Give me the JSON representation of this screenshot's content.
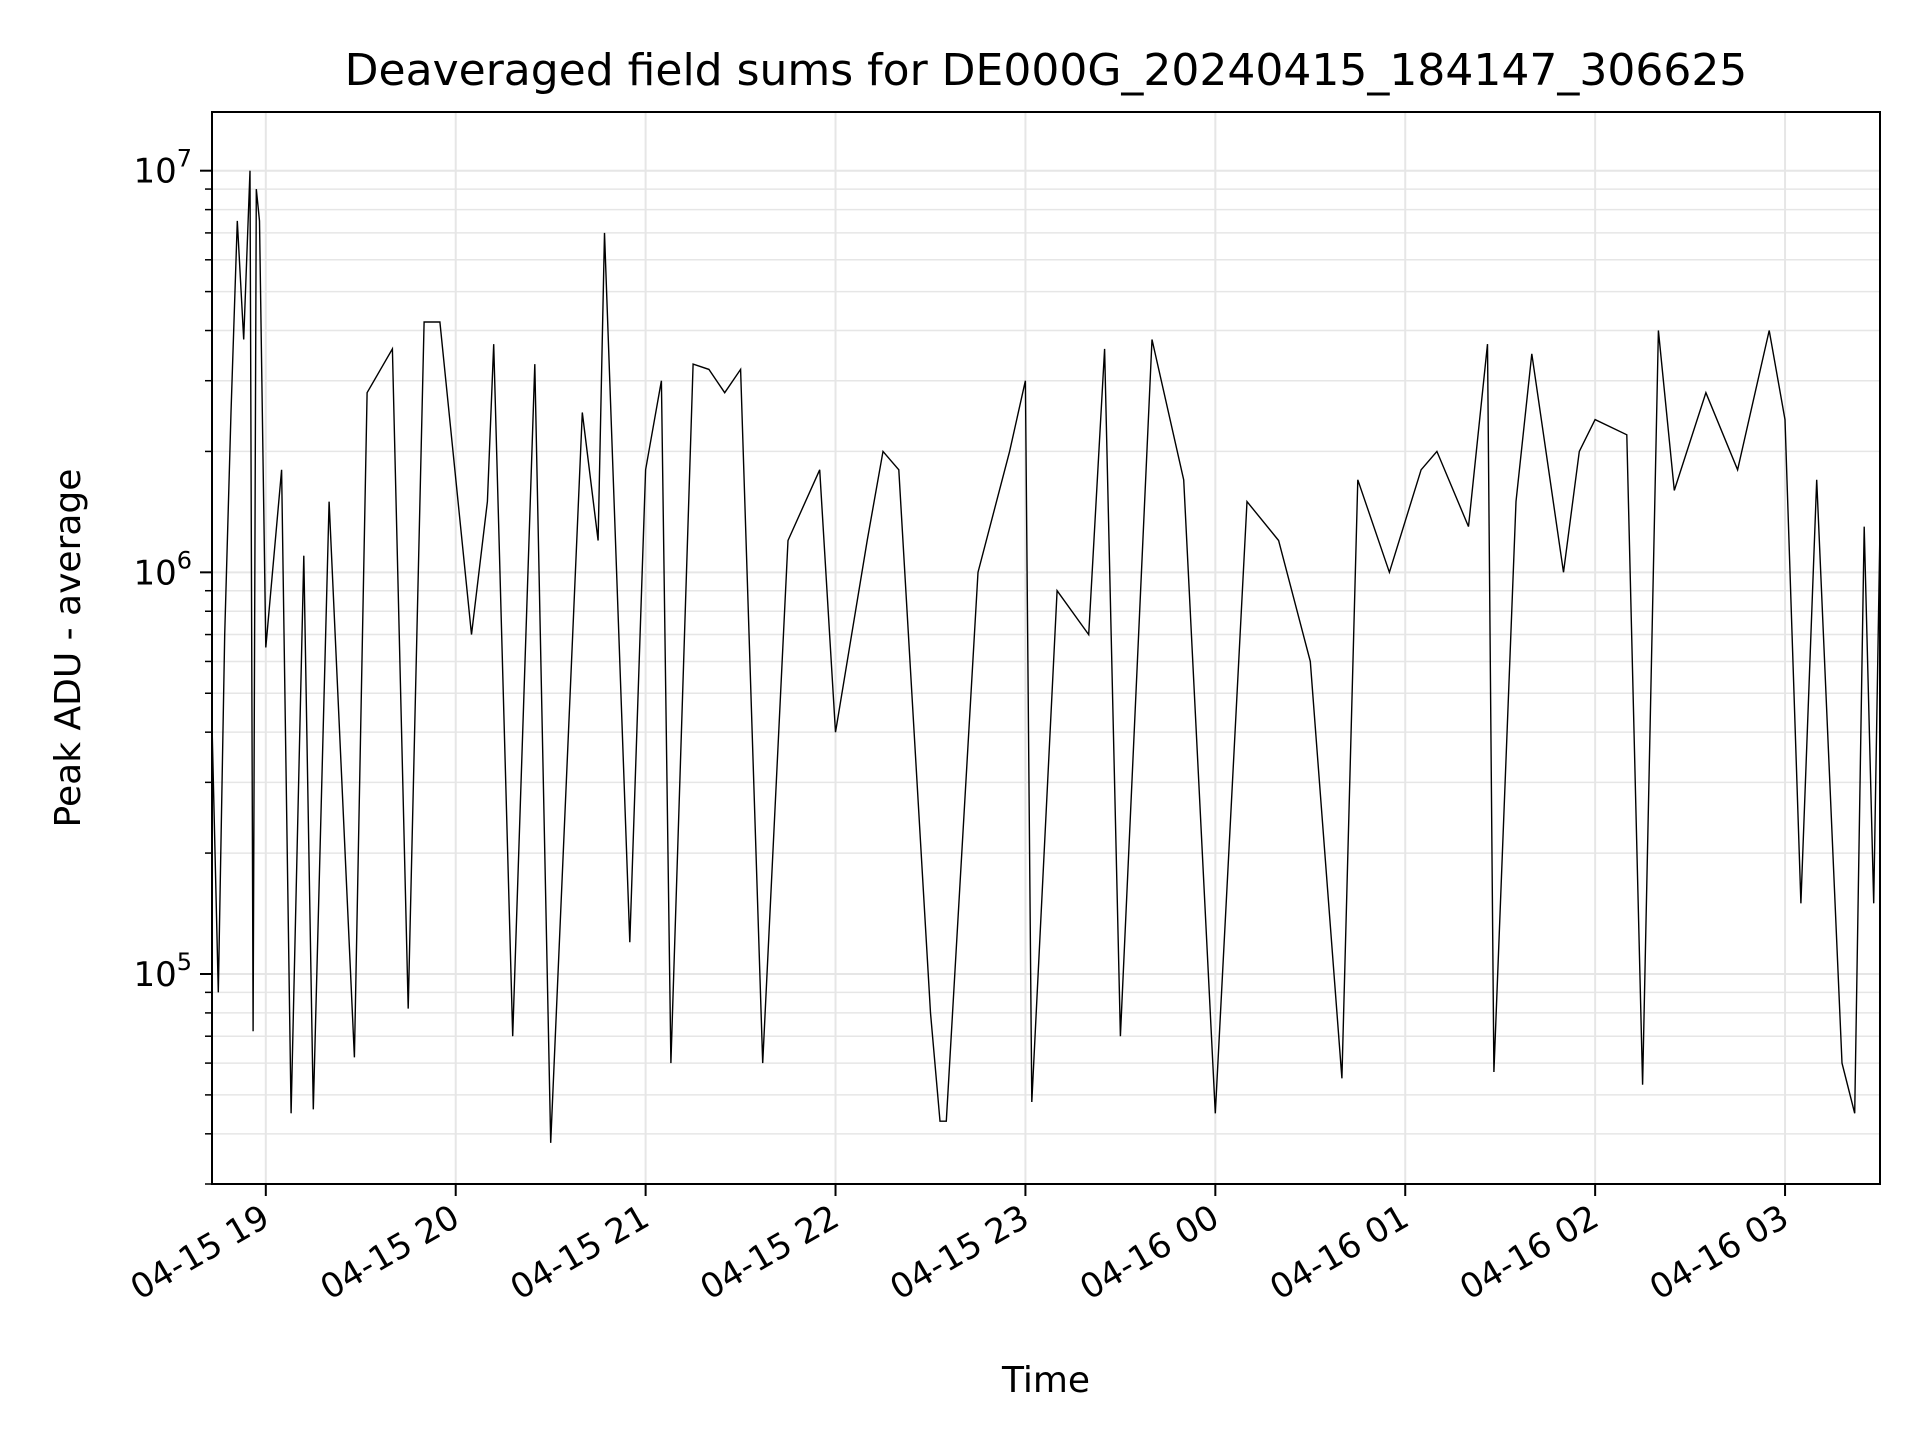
{
  "chart_data": {
    "type": "line",
    "title": "Deaveraged field sums for DE000G_20240415_184147_306625",
    "xlabel": "Time",
    "ylabel": "Peak ADU - average",
    "yscale": "log",
    "ylim": [
      30000,
      14000000
    ],
    "xlim": [
      "2024-04-15 18:43",
      "2024-04-16 03:30"
    ],
    "grid": true,
    "line_color": "#000000",
    "grid_color": "#e6e6e6",
    "x_ticks": [
      {
        "t": "2024-04-15 19:00",
        "label": "04-15 19"
      },
      {
        "t": "2024-04-15 20:00",
        "label": "04-15 20"
      },
      {
        "t": "2024-04-15 21:00",
        "label": "04-15 21"
      },
      {
        "t": "2024-04-15 22:00",
        "label": "04-15 22"
      },
      {
        "t": "2024-04-15 23:00",
        "label": "04-15 23"
      },
      {
        "t": "2024-04-16 00:00",
        "label": "04-16 00"
      },
      {
        "t": "2024-04-16 01:00",
        "label": "04-16 01"
      },
      {
        "t": "2024-04-16 02:00",
        "label": "04-16 02"
      },
      {
        "t": "2024-04-16 03:00",
        "label": "04-16 03"
      }
    ],
    "y_ticks": [
      {
        "value": 100000,
        "base": "10",
        "exp": "5"
      },
      {
        "value": 1000000,
        "base": "10",
        "exp": "6"
      },
      {
        "value": 10000000,
        "base": "10",
        "exp": "7"
      }
    ],
    "series": [
      {
        "points": [
          [
            "2024-04-15 18:43",
            420000
          ],
          [
            "2024-04-15 18:45",
            90000
          ],
          [
            "2024-04-15 18:47",
            700000
          ],
          [
            "2024-04-15 18:49",
            2500000
          ],
          [
            "2024-04-15 18:51",
            7500000
          ],
          [
            "2024-04-15 18:53",
            3800000
          ],
          [
            "2024-04-15 18:55",
            10000000
          ],
          [
            "2024-04-15 18:56",
            72000
          ],
          [
            "2024-04-15 18:57",
            9000000
          ],
          [
            "2024-04-15 18:58",
            7500000
          ],
          [
            "2024-04-15 19:00",
            650000
          ],
          [
            "2024-04-15 19:05",
            1800000
          ],
          [
            "2024-04-15 19:08",
            45000
          ],
          [
            "2024-04-15 19:12",
            1100000
          ],
          [
            "2024-04-15 19:15",
            46000
          ],
          [
            "2024-04-15 19:20",
            1500000
          ],
          [
            "2024-04-15 19:28",
            62000
          ],
          [
            "2024-04-15 19:32",
            2800000
          ],
          [
            "2024-04-15 19:40",
            3600000
          ],
          [
            "2024-04-15 19:45",
            82000
          ],
          [
            "2024-04-15 19:50",
            4200000
          ],
          [
            "2024-04-15 19:55",
            4200000
          ],
          [
            "2024-04-15 20:05",
            700000
          ],
          [
            "2024-04-15 20:10",
            1500000
          ],
          [
            "2024-04-15 20:12",
            3700000
          ],
          [
            "2024-04-15 20:18",
            70000
          ],
          [
            "2024-04-15 20:25",
            3300000
          ],
          [
            "2024-04-15 20:30",
            38000
          ],
          [
            "2024-04-15 20:40",
            2500000
          ],
          [
            "2024-04-15 20:45",
            1200000
          ],
          [
            "2024-04-15 20:47",
            7000000
          ],
          [
            "2024-04-15 20:55",
            120000
          ],
          [
            "2024-04-15 21:00",
            1800000
          ],
          [
            "2024-04-15 21:05",
            3000000
          ],
          [
            "2024-04-15 21:08",
            60000
          ],
          [
            "2024-04-15 21:15",
            3300000
          ],
          [
            "2024-04-15 21:20",
            3200000
          ],
          [
            "2024-04-15 21:25",
            2800000
          ],
          [
            "2024-04-15 21:30",
            3200000
          ],
          [
            "2024-04-15 21:37",
            60000
          ],
          [
            "2024-04-15 21:45",
            1200000
          ],
          [
            "2024-04-15 21:55",
            1800000
          ],
          [
            "2024-04-15 22:00",
            400000
          ],
          [
            "2024-04-15 22:10",
            1200000
          ],
          [
            "2024-04-15 22:15",
            2000000
          ],
          [
            "2024-04-15 22:20",
            1800000
          ],
          [
            "2024-04-15 22:30",
            80000
          ],
          [
            "2024-04-15 22:33",
            43000
          ],
          [
            "2024-04-15 22:35",
            43000
          ],
          [
            "2024-04-15 22:45",
            1000000
          ],
          [
            "2024-04-15 22:55",
            2000000
          ],
          [
            "2024-04-15 23:00",
            3000000
          ],
          [
            "2024-04-15 23:02",
            48000
          ],
          [
            "2024-04-15 23:10",
            900000
          ],
          [
            "2024-04-15 23:20",
            700000
          ],
          [
            "2024-04-15 23:25",
            3600000
          ],
          [
            "2024-04-15 23:30",
            70000
          ],
          [
            "2024-04-15 23:40",
            3800000
          ],
          [
            "2024-04-15 23:50",
            1700000
          ],
          [
            "2024-04-16 00:00",
            45000
          ],
          [
            "2024-04-16 00:10",
            1500000
          ],
          [
            "2024-04-16 00:20",
            1200000
          ],
          [
            "2024-04-16 00:30",
            600000
          ],
          [
            "2024-04-16 00:40",
            55000
          ],
          [
            "2024-04-16 00:45",
            1700000
          ],
          [
            "2024-04-16 00:55",
            1000000
          ],
          [
            "2024-04-16 01:05",
            1800000
          ],
          [
            "2024-04-16 01:10",
            2000000
          ],
          [
            "2024-04-16 01:20",
            1300000
          ],
          [
            "2024-04-16 01:26",
            3700000
          ],
          [
            "2024-04-16 01:28",
            57000
          ],
          [
            "2024-04-16 01:35",
            1500000
          ],
          [
            "2024-04-16 01:40",
            3500000
          ],
          [
            "2024-04-16 01:50",
            1000000
          ],
          [
            "2024-04-16 01:55",
            2000000
          ],
          [
            "2024-04-16 02:00",
            2400000
          ],
          [
            "2024-04-16 02:10",
            2200000
          ],
          [
            "2024-04-16 02:15",
            53000
          ],
          [
            "2024-04-16 02:20",
            4000000
          ],
          [
            "2024-04-16 02:25",
            1600000
          ],
          [
            "2024-04-16 02:35",
            2800000
          ],
          [
            "2024-04-16 02:45",
            1800000
          ],
          [
            "2024-04-16 02:55",
            4000000
          ],
          [
            "2024-04-16 03:00",
            2400000
          ],
          [
            "2024-04-16 03:05",
            150000
          ],
          [
            "2024-04-16 03:10",
            1700000
          ],
          [
            "2024-04-16 03:18",
            60000
          ],
          [
            "2024-04-16 03:22",
            45000
          ],
          [
            "2024-04-16 03:25",
            1300000
          ],
          [
            "2024-04-16 03:28",
            150000
          ],
          [
            "2024-04-16 03:30",
            1300000
          ]
        ]
      }
    ]
  }
}
